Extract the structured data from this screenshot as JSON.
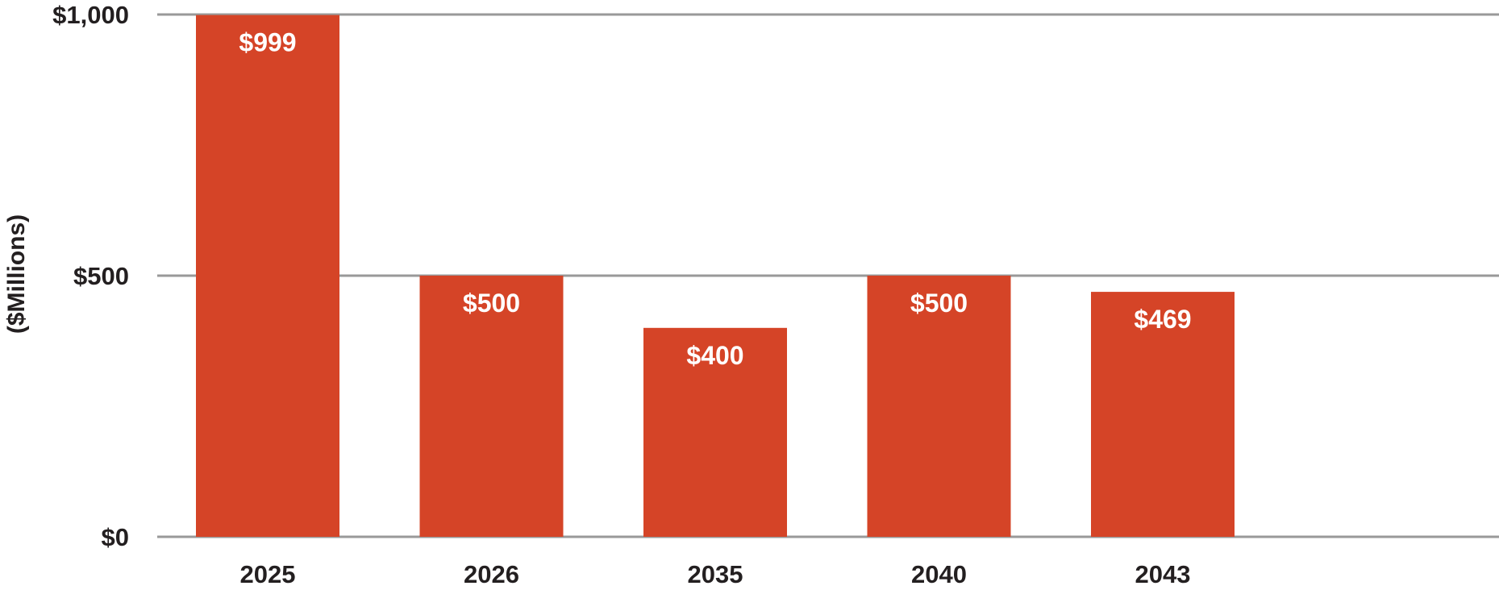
{
  "chart_data": {
    "type": "bar",
    "title": "",
    "xlabel": "",
    "ylabel": "($Millions)",
    "categories": [
      "2025",
      "2026",
      "2035",
      "2040",
      "2043"
    ],
    "values": [
      999,
      500,
      400,
      500,
      469
    ],
    "data_labels": [
      "$999",
      "$500",
      "$400",
      "$500",
      "$469"
    ],
    "ylim": [
      0,
      1000
    ],
    "yticks": [
      0,
      500,
      1000
    ],
    "ytick_labels": [
      "$0",
      "$500",
      "$1,000"
    ],
    "grid": true,
    "legend": "none",
    "colors": {
      "bar": "#d54427",
      "grid": "#999999",
      "axis_text": "#231f20",
      "data_label": "#ffffff"
    }
  }
}
